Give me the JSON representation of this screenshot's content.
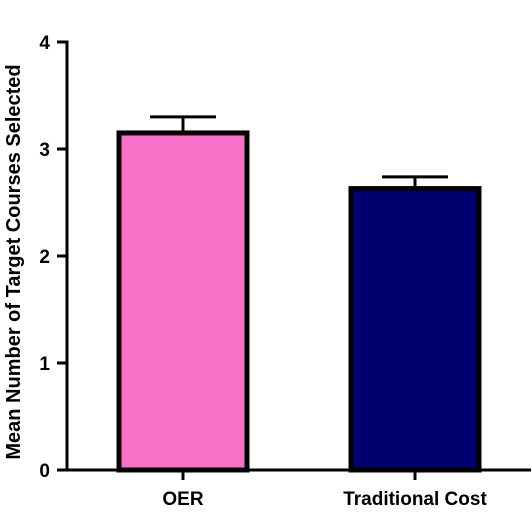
{
  "chart_data": {
    "type": "bar",
    "title": "",
    "xlabel": "",
    "ylabel": "Mean Number of Target Courses Selected",
    "categories": [
      "OER",
      "Traditional Cost"
    ],
    "values": [
      3.15,
      2.63
    ],
    "errors": [
      0.15,
      0.11
    ],
    "colors": [
      "#F870C8",
      "#000070"
    ],
    "ylim": [
      0,
      4
    ],
    "yticks": [
      0,
      1,
      2,
      3,
      4
    ],
    "grid": false,
    "legend": "none"
  }
}
